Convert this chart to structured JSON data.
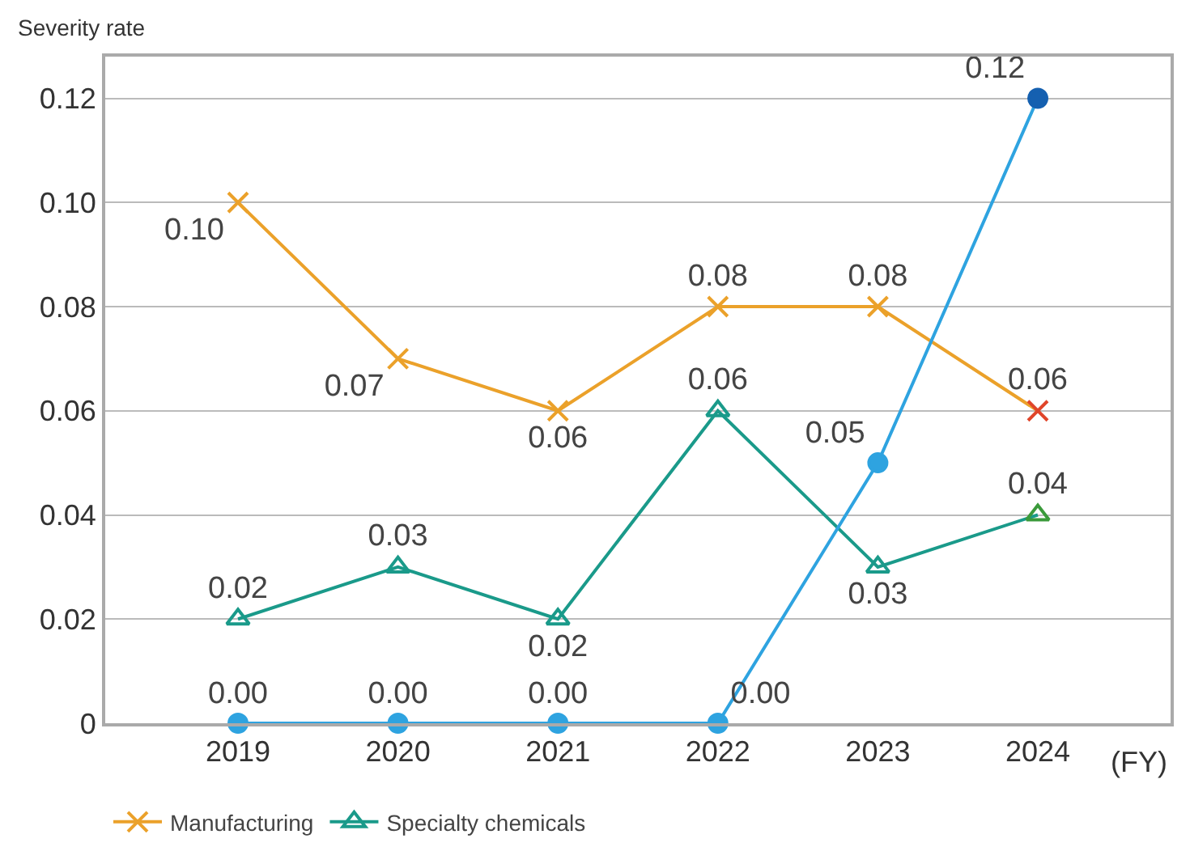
{
  "chart_data": {
    "type": "line",
    "ylabel": "Severity rate",
    "xlabel": "(FY)",
    "categories": [
      "2019",
      "2020",
      "2021",
      "2022",
      "2023",
      "2024"
    ],
    "series": [
      {
        "name": "Manufacturing",
        "color": "#eba12a",
        "marker": "cross",
        "colors": [
          "#eba12a",
          "#eba12a",
          "#eba12a",
          "#eba12a",
          "#eba12a",
          "#e0452a"
        ],
        "values": [
          0.1,
          0.07,
          0.06,
          0.08,
          0.08,
          0.06
        ],
        "value_labels": [
          "0.10",
          "0.07",
          "0.06",
          "0.08",
          "0.08",
          "0.06"
        ]
      },
      {
        "name": "Specialty chemicals",
        "color": "#1a9a8a",
        "marker": "triangle",
        "colors": [
          "#1a9a8a",
          "#1a9a8a",
          "#1a9a8a",
          "#1a9a8a",
          "#1a9a8a",
          "#3a9a3a"
        ],
        "values": [
          0.02,
          0.03,
          0.02,
          0.06,
          0.03,
          0.04
        ],
        "value_labels": [
          "0.02",
          "0.03",
          "0.02",
          "0.06",
          "0.03",
          "0.04"
        ]
      },
      {
        "color": "#2ea3e0",
        "marker": "circle",
        "colors": [
          "#2ea3e0",
          "#2ea3e0",
          "#2ea3e0",
          "#2ea3e0",
          "#2ea3e0",
          "#1560b0"
        ],
        "values": [
          0.0,
          0.0,
          0.0,
          0.0,
          0.05,
          0.12
        ],
        "value_labels": [
          "0.00",
          "0.00",
          "0.00",
          "0.00",
          "0.05",
          "0.12"
        ]
      }
    ],
    "ylim": [
      0,
      0.128
    ],
    "yticks": [
      {
        "value": 0,
        "label": "0"
      },
      {
        "value": 0.02,
        "label": "0.02"
      },
      {
        "value": 0.04,
        "label": "0.04"
      },
      {
        "value": 0.06,
        "label": "0.06"
      },
      {
        "value": 0.08,
        "label": "0.08"
      },
      {
        "value": 0.1,
        "label": "0.10"
      },
      {
        "value": 0.12,
        "label": "0.12"
      }
    ],
    "grid": "y",
    "legend": "bottom",
    "line_style": "solid"
  }
}
